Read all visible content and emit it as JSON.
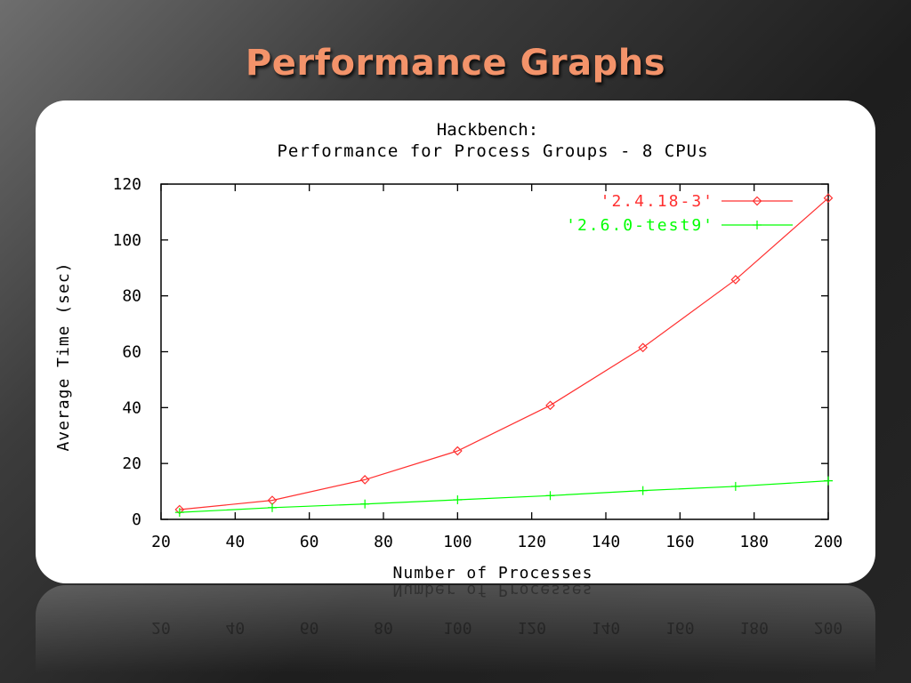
{
  "slide": {
    "title": "Performance Graphs"
  },
  "colors": {
    "title": "#f3936a",
    "series_2_4": "#ff3030",
    "series_2_6": "#00ff00",
    "axis": "#000000"
  },
  "chart_data": {
    "type": "line",
    "title": "Hackbench:",
    "subtitle": "Performance for Process Groups - 8 CPUs",
    "xlabel": "Number of Processes",
    "ylabel": "Average Time (sec)",
    "xlim": [
      20,
      200
    ],
    "ylim": [
      0,
      120
    ],
    "xticks": [
      20,
      40,
      60,
      80,
      100,
      120,
      140,
      160,
      180,
      200
    ],
    "yticks": [
      0,
      20,
      40,
      60,
      80,
      100,
      120
    ],
    "grid": false,
    "legend_position": "top-right",
    "x": [
      25,
      50,
      75,
      100,
      125,
      150,
      175,
      200
    ],
    "series": [
      {
        "name": "'2.4.18-3'",
        "marker": "diamond",
        "color": "#ff3030",
        "values": [
          3.5,
          6.8,
          14.2,
          24.5,
          40.8,
          61.5,
          85.8,
          115
        ]
      },
      {
        "name": "'2.6.0-test9'",
        "marker": "plus",
        "color": "#00ff00",
        "values": [
          2.5,
          4.2,
          5.5,
          7.0,
          8.5,
          10.3,
          11.8,
          13.8
        ]
      }
    ]
  }
}
